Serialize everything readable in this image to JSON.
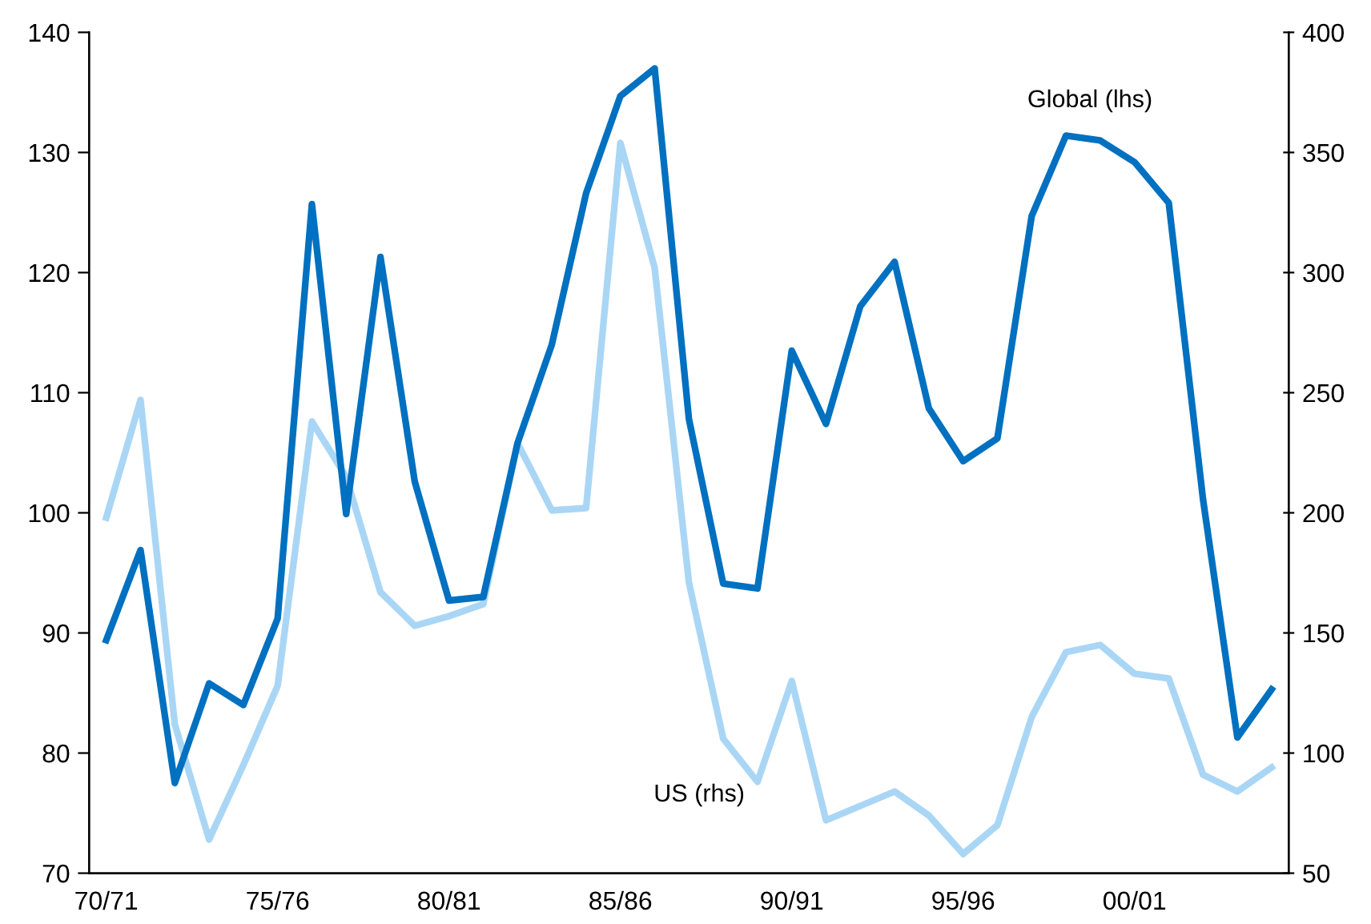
{
  "chart_data": {
    "type": "line",
    "categories": [
      "70/71",
      null,
      null,
      null,
      null,
      "75/76",
      null,
      null,
      null,
      null,
      "80/81",
      null,
      null,
      null,
      null,
      "85/86",
      null,
      null,
      null,
      null,
      "90/91",
      null,
      null,
      null,
      null,
      "95/96",
      null,
      null,
      null,
      null,
      "00/01",
      null,
      null,
      null,
      null
    ],
    "series": [
      {
        "name": "Global (lhs)",
        "color": "#0070c0",
        "values": [
          89.4,
          96.9,
          77.5,
          85.8,
          84.0,
          91.2,
          125.7,
          99.9,
          121.3,
          102.6,
          92.7,
          93.0,
          105.8,
          114.0,
          126.6,
          134.7,
          137.0,
          107.8,
          94.1,
          93.7,
          113.5,
          107.4,
          117.2,
          120.9,
          108.7,
          104.3,
          106.2,
          124.7,
          131.4,
          131.0,
          129.2,
          125.8,
          101.1,
          81.3,
          85.3
        ]
      },
      {
        "name": "US (rhs)",
        "color": "#aad6f5",
        "axis": "y2",
        "values": [
          198,
          247,
          112,
          64,
          95,
          128,
          238,
          215,
          167,
          153,
          157,
          162,
          229,
          201,
          202,
          354,
          302,
          171,
          106,
          88,
          130,
          72,
          78,
          84,
          74,
          58,
          70,
          115,
          142,
          145,
          133,
          131,
          91,
          84,
          94
        ]
      }
    ],
    "ylim": [
      70,
      140
    ],
    "yticks": [
      70,
      80,
      90,
      100,
      110,
      120,
      130,
      140
    ],
    "y2lim": [
      50,
      400
    ],
    "y2ticks": [
      50,
      100,
      150,
      200,
      250,
      300,
      350,
      400
    ],
    "grid": false,
    "legend": false,
    "marker": "none",
    "line_style": "solid"
  }
}
